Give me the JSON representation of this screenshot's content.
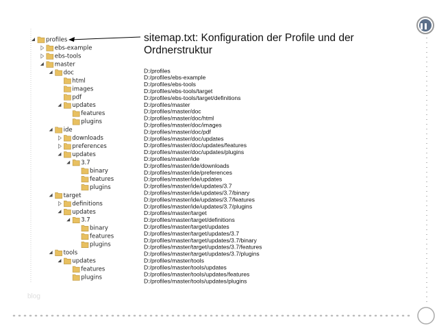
{
  "heading": [
    "sitemap.txt: Konfiguration der Profile und der",
    "Ordnerstruktur"
  ],
  "tree": [
    {
      "label": "profiles",
      "depth": 0,
      "state": "open"
    },
    {
      "label": "ebs-example",
      "depth": 1,
      "state": "closed"
    },
    {
      "label": "ebs-tools",
      "depth": 1,
      "state": "closed"
    },
    {
      "label": "master",
      "depth": 1,
      "state": "open"
    },
    {
      "label": "doc",
      "depth": 2,
      "state": "open"
    },
    {
      "label": "html",
      "depth": 3,
      "state": "leaf"
    },
    {
      "label": "images",
      "depth": 3,
      "state": "leaf"
    },
    {
      "label": "pdf",
      "depth": 3,
      "state": "leaf"
    },
    {
      "label": "updates",
      "depth": 3,
      "state": "open"
    },
    {
      "label": "features",
      "depth": 4,
      "state": "leaf"
    },
    {
      "label": "plugins",
      "depth": 4,
      "state": "leaf"
    },
    {
      "label": "ide",
      "depth": 2,
      "state": "open"
    },
    {
      "label": "downloads",
      "depth": 3,
      "state": "closed"
    },
    {
      "label": "preferences",
      "depth": 3,
      "state": "closed"
    },
    {
      "label": "updates",
      "depth": 3,
      "state": "open"
    },
    {
      "label": "3.7",
      "depth": 4,
      "state": "open"
    },
    {
      "label": "binary",
      "depth": 5,
      "state": "leaf"
    },
    {
      "label": "features",
      "depth": 5,
      "state": "leaf"
    },
    {
      "label": "plugins",
      "depth": 5,
      "state": "leaf"
    },
    {
      "label": "target",
      "depth": 2,
      "state": "open"
    },
    {
      "label": "definitions",
      "depth": 3,
      "state": "closed"
    },
    {
      "label": "updates",
      "depth": 3,
      "state": "open"
    },
    {
      "label": "3.7",
      "depth": 4,
      "state": "open"
    },
    {
      "label": "binary",
      "depth": 5,
      "state": "leaf"
    },
    {
      "label": "features",
      "depth": 5,
      "state": "leaf"
    },
    {
      "label": "plugins",
      "depth": 5,
      "state": "leaf"
    },
    {
      "label": "tools",
      "depth": 2,
      "state": "open"
    },
    {
      "label": "updates",
      "depth": 3,
      "state": "open"
    },
    {
      "label": "features",
      "depth": 4,
      "state": "leaf"
    },
    {
      "label": "plugins",
      "depth": 4,
      "state": "leaf"
    }
  ],
  "paths": [
    "D:/profiles",
    "D:/profiles/ebs-example",
    "D:/profiles/ebs-tools",
    "D:/profiles/ebs-tools/target",
    "D:/profiles/ebs-tools/target/definitions",
    "D:/profiles/master",
    "D:/profiles/master/doc",
    "D:/profiles/master/doc/html",
    "D:/profiles/master/doc/images",
    "D:/profiles/master/doc/pdf",
    "D:/profiles/master/doc/updates",
    "D:/profiles/master/doc/updates/features",
    "D:/profiles/master/doc/updates/plugins",
    "D:/profiles/master/ide",
    "D:/profiles/master/ide/downloads",
    "D:/profiles/master/ide/preferences",
    "D:/profiles/master/ide/updates",
    "D:/profiles/master/ide/updates/3.7",
    "D:/profiles/master/ide/updates/3.7/binary",
    "D:/profiles/master/ide/updates/3.7/features",
    "D:/profiles/master/ide/updates/3.7/plugins",
    "D:/profiles/master/target",
    "D:/profiles/master/target/definitions",
    "D:/profiles/master/target/updates",
    "D:/profiles/master/target/updates/3.7",
    "D:/profiles/master/target/updates/3.7/binary",
    "D:/profiles/master/target/updates/3.7/features",
    "D:/profiles/master/target/updates/3.7/plugins",
    "D:/profiles/master/tools",
    "D:/profiles/master/tools/updates",
    "D:/profiles/master/tools/updates/features",
    "D:/profiles/master/tools/updates/plugins"
  ],
  "watermark": "blog"
}
